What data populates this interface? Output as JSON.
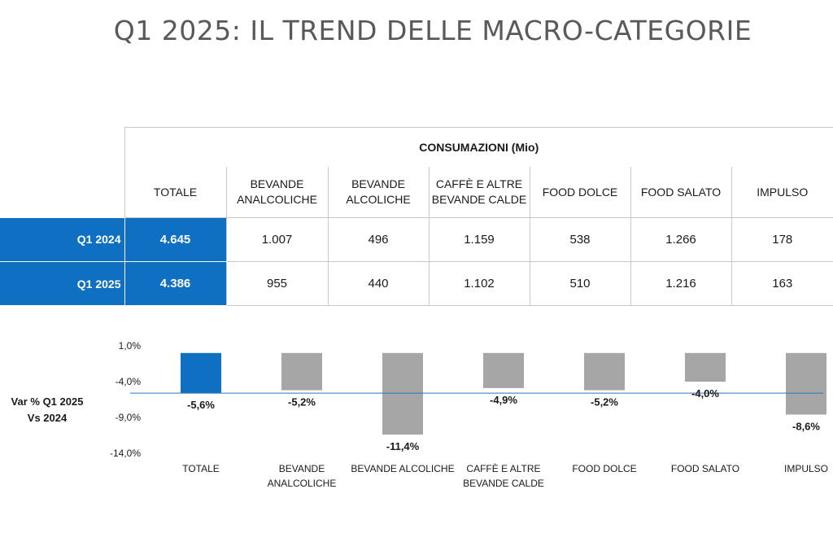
{
  "title": "Q1 2025: IL TREND DELLE MACRO-CATEGORIE",
  "table": {
    "group_header": "CONSUMAZIONI (Mio)",
    "columns": [
      [
        "TOTALE"
      ],
      [
        "BEVANDE",
        "ANALCOLICHE"
      ],
      [
        "BEVANDE",
        "ALCOLICHE"
      ],
      [
        "CAFFÈ E ALTRE",
        "BEVANDE CALDE"
      ],
      [
        "FOOD DOLCE"
      ],
      [
        "FOOD SALATO"
      ],
      [
        "IMPULSO"
      ]
    ],
    "rows": [
      {
        "label": "Q1 2024",
        "values": [
          "4.645",
          "1.007",
          "496",
          "1.159",
          "538",
          "1.266",
          "178"
        ]
      },
      {
        "label": "Q1 2025",
        "values": [
          "4.386",
          "955",
          "440",
          "1.102",
          "510",
          "1.216",
          "163"
        ]
      }
    ]
  },
  "variation_label": [
    "Var % Q1 2025",
    "Vs 2024"
  ],
  "chart_data": {
    "type": "bar",
    "categories": [
      [
        "TOTALE"
      ],
      [
        "BEVANDE",
        "ANALCOLICHE"
      ],
      [
        "BEVANDE ALCOLICHE"
      ],
      [
        "CAFFÈ E ALTRE",
        "BEVANDE CALDE"
      ],
      [
        "FOOD DOLCE"
      ],
      [
        "FOOD SALATO"
      ],
      [
        "IMPULSO"
      ]
    ],
    "values": [
      -5.6,
      -5.2,
      -11.4,
      -4.9,
      -5.2,
      -4.0,
      -8.6
    ],
    "data_labels": [
      "-5,6%",
      "-5,2%",
      "-11,4%",
      "-4,9%",
      "-5,2%",
      "-4,0%",
      "-8,6%"
    ],
    "ylim": [
      -14.0,
      1.0
    ],
    "yticks": [
      1.0,
      -4.0,
      -9.0,
      -14.0
    ],
    "ytick_labels": [
      "1,0%",
      "-4,0%",
      "-9,0%",
      "-14,0%"
    ],
    "reference_line": -5.6,
    "colors": {
      "highlight": "#0f6fc0",
      "bar": "#a6a6a6",
      "reference_line": "#2e75b6"
    },
    "grid": false
  }
}
